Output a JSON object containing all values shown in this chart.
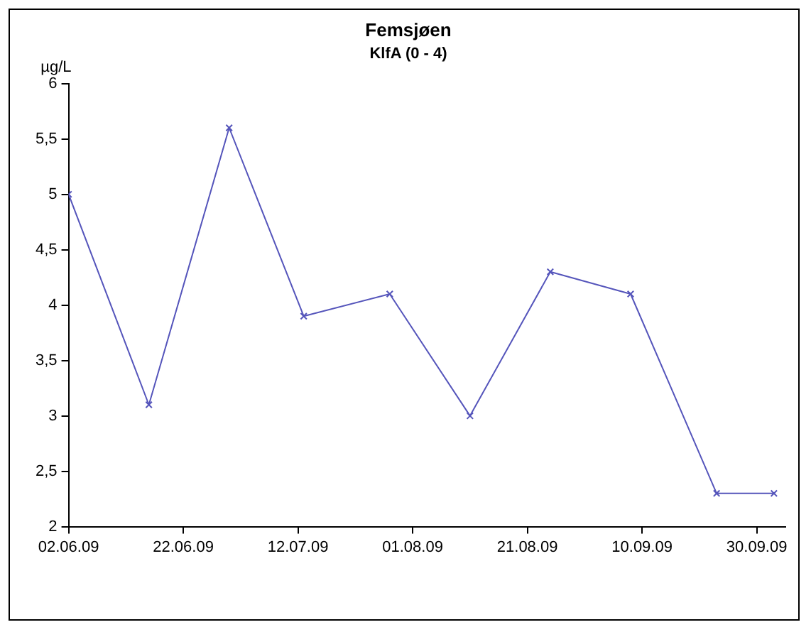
{
  "chart_data": {
    "type": "line",
    "title": "Femsjøen",
    "subtitle": "KlfA (0 - 4)",
    "ylabel": "µg/L",
    "x": [
      "2009-06-02",
      "2009-06-16",
      "2009-06-30",
      "2009-07-13",
      "2009-07-28",
      "2009-08-11",
      "2009-08-25",
      "2009-09-08",
      "2009-09-23",
      "2009-10-03"
    ],
    "series": [
      {
        "color": "#5555bb",
        "values": [
          5.0,
          3.1,
          5.6,
          3.9,
          4.1,
          3.0,
          4.3,
          4.1,
          2.3,
          2.3
        ]
      }
    ],
    "xlim": [
      "2009-06-02",
      "2009-10-05"
    ],
    "xticks": [
      {
        "value": "2009-06-02",
        "label": "02.06.09"
      },
      {
        "value": "2009-06-22",
        "label": "22.06.09"
      },
      {
        "value": "2009-07-12",
        "label": "12.07.09"
      },
      {
        "value": "2009-08-01",
        "label": "01.08.09"
      },
      {
        "value": "2009-08-21",
        "label": "21.08.09"
      },
      {
        "value": "2009-09-10",
        "label": "10.09.09"
      },
      {
        "value": "2009-09-30",
        "label": "30.09.09"
      }
    ],
    "ylim": [
      2,
      6
    ],
    "yticks": [
      {
        "value": 2,
        "label": "2"
      },
      {
        "value": 2.5,
        "label": "2,5"
      },
      {
        "value": 3,
        "label": "3"
      },
      {
        "value": 3.5,
        "label": "3,5"
      },
      {
        "value": 4,
        "label": "4"
      },
      {
        "value": 4.5,
        "label": "4,5"
      },
      {
        "value": 5,
        "label": "5"
      },
      {
        "value": 5.5,
        "label": "5,5"
      },
      {
        "value": 6,
        "label": "6"
      }
    ],
    "grid": false,
    "legend": false,
    "marker": "cross",
    "line_style": "solid"
  }
}
